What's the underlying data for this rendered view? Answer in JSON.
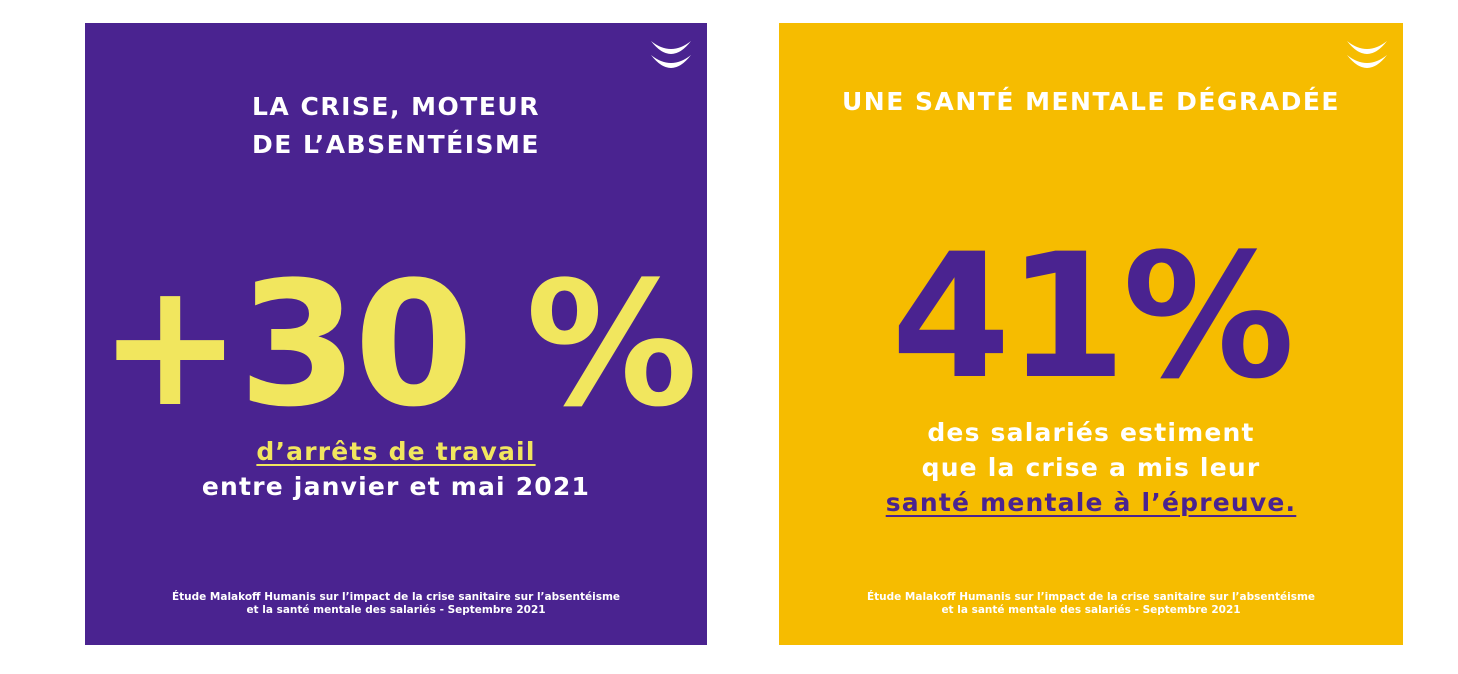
{
  "colors": {
    "purple": "#4a2390",
    "yellow": "#f6bc00",
    "light_yellow": "#f1e65e",
    "white": "#ffffff"
  },
  "cards": [
    {
      "logo_icon": "malakoff-humanis-logo-icon",
      "title_lines": [
        "LA CRISE, MOTEUR",
        "DE L’ABSENTÉISME"
      ],
      "stat": "+30 %",
      "desc_underlined": "d’arrêts de travail",
      "desc_line": "entre janvier et mai 2021",
      "source_lines": [
        "Étude Malakoff Humanis sur l’impact de la crise sanitaire sur l’absentéisme",
        "et la santé mentale des salariés - Septembre 2021"
      ]
    },
    {
      "logo_icon": "malakoff-humanis-logo-icon",
      "title_lines": [
        "UNE SANTÉ MENTALE DÉGRADÉE"
      ],
      "stat": "41%",
      "desc_lines": [
        "des salariés estiment",
        "que la crise a mis leur"
      ],
      "desc_underlined": "santé mentale à l’épreuve.",
      "source_lines": [
        "Étude Malakoff Humanis sur l’impact de la crise sanitaire sur l’absentéisme",
        "et la santé mentale des salariés - Septembre 2021"
      ]
    }
  ]
}
